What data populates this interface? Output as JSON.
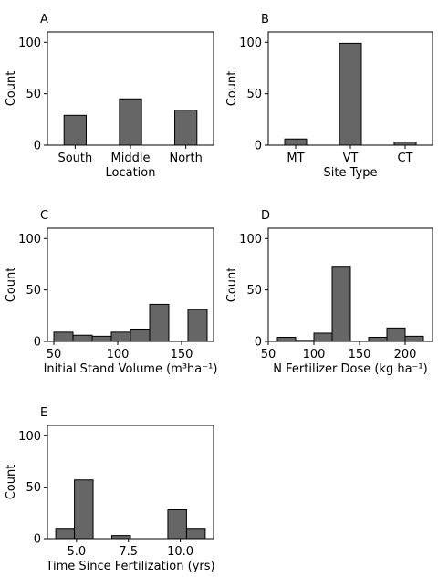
{
  "chart_data": [
    {
      "panel": "A",
      "type": "bar",
      "categories": [
        "South",
        "Middle",
        "North"
      ],
      "values": [
        29,
        45,
        34
      ],
      "xlabel": "Location",
      "ylabel": "Count",
      "ylim": [
        0,
        110
      ],
      "yticks": [
        0,
        50,
        100
      ]
    },
    {
      "panel": "B",
      "type": "bar",
      "categories": [
        "MT",
        "VT",
        "CT"
      ],
      "values": [
        6,
        99,
        3
      ],
      "xlabel": "Site Type",
      "ylabel": "Count",
      "ylim": [
        0,
        110
      ],
      "yticks": [
        0,
        50,
        100
      ]
    },
    {
      "panel": "C",
      "type": "histogram",
      "bins": [
        {
          "start": 50,
          "end": 65,
          "count": 9
        },
        {
          "start": 65,
          "end": 80,
          "count": 6
        },
        {
          "start": 80,
          "end": 95,
          "count": 5
        },
        {
          "start": 95,
          "end": 110,
          "count": 9
        },
        {
          "start": 110,
          "end": 125,
          "count": 12
        },
        {
          "start": 125,
          "end": 140,
          "count": 36
        },
        {
          "start": 155,
          "end": 170,
          "count": 31
        }
      ],
      "xlim": [
        45,
        175
      ],
      "xticks": [
        50,
        100,
        150
      ],
      "xlabel": "Initial Stand Volume (m³ha⁻¹)",
      "ylabel": "Count",
      "ylim": [
        0,
        110
      ],
      "yticks": [
        0,
        50,
        100
      ]
    },
    {
      "panel": "D",
      "type": "histogram",
      "bins": [
        {
          "start": 60,
          "end": 80,
          "count": 4
        },
        {
          "start": 80,
          "end": 100,
          "count": 1
        },
        {
          "start": 100,
          "end": 120,
          "count": 8
        },
        {
          "start": 120,
          "end": 140,
          "count": 73
        },
        {
          "start": 160,
          "end": 180,
          "count": 4
        },
        {
          "start": 180,
          "end": 200,
          "count": 13
        },
        {
          "start": 200,
          "end": 220,
          "count": 5
        }
      ],
      "xlim": [
        50,
        230
      ],
      "xticks": [
        50,
        100,
        150,
        200
      ],
      "xlabel": "N Fertilizer Dose (kg ha⁻¹)",
      "ylabel": "Count",
      "ylim": [
        0,
        110
      ],
      "yticks": [
        0,
        50,
        100
      ]
    },
    {
      "panel": "E",
      "type": "histogram",
      "bins": [
        {
          "start": 4.0,
          "end": 4.9,
          "count": 10
        },
        {
          "start": 4.9,
          "end": 5.8,
          "count": 57
        },
        {
          "start": 6.7,
          "end": 7.6,
          "count": 3
        },
        {
          "start": 9.4,
          "end": 10.3,
          "count": 28
        },
        {
          "start": 10.3,
          "end": 11.2,
          "count": 10
        }
      ],
      "xlim": [
        3.6,
        11.6
      ],
      "xticks": [
        5.0,
        7.5,
        10.0
      ],
      "xlabel": "Time Since Fertilization (yrs)",
      "ylabel": "Count",
      "ylim": [
        0,
        110
      ],
      "yticks": [
        0,
        50,
        100
      ]
    }
  ]
}
